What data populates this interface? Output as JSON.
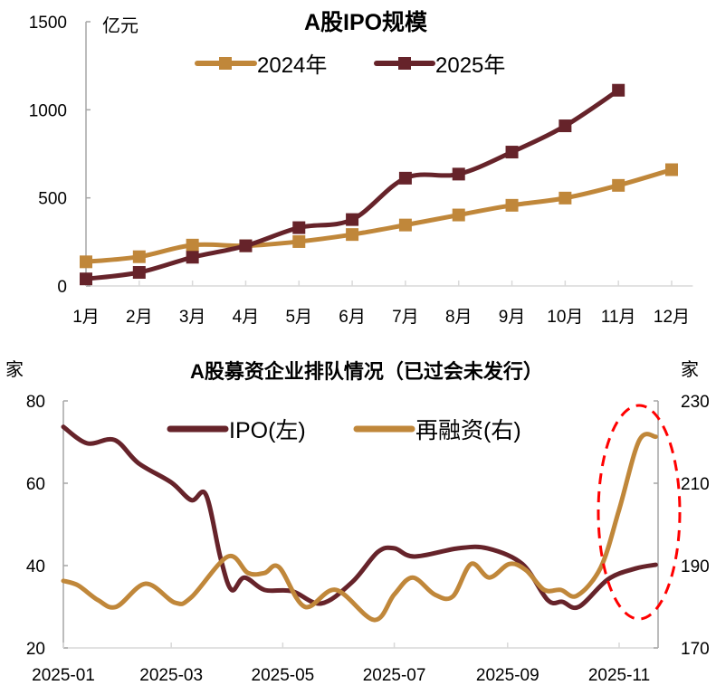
{
  "colors": {
    "y2024": "#C0873A",
    "y2025": "#66232A",
    "annotation": "#FF0000",
    "axis": "#A6A6A6"
  },
  "chart_data": [
    {
      "type": "line",
      "title": "A股IPO规模",
      "ylabel": "亿元",
      "categories": [
        "1月",
        "2月",
        "3月",
        "4月",
        "5月",
        "6月",
        "7月",
        "8月",
        "9月",
        "10月",
        "11月",
        "12月"
      ],
      "ylim": [
        0,
        1500
      ],
      "yticks": [
        "0",
        "500",
        "1000",
        "1500"
      ],
      "grid": false,
      "legend_position": "top",
      "markers": "square",
      "series": [
        {
          "name": "2024年",
          "values": [
            137,
            166,
            232,
            228,
            252,
            292,
            346,
            403,
            458,
            499,
            571,
            660
          ]
        },
        {
          "name": "2025年",
          "values": [
            40,
            77,
            163,
            228,
            331,
            377,
            612,
            635,
            760,
            909,
            1111,
            null
          ]
        }
      ]
    },
    {
      "type": "line",
      "title": "A股募资企业排队情况（已过会未发行）",
      "ylabel_left": "家",
      "ylabel_right": "家",
      "ylim_left": [
        20,
        80
      ],
      "ylim_right": [
        170,
        230
      ],
      "yticks_left": [
        "20",
        "40",
        "60",
        "80"
      ],
      "yticks_right": [
        "170",
        "190",
        "210",
        "230"
      ],
      "xticks": [
        "2025-01",
        "2025-03",
        "2025-05",
        "2025-07",
        "2025-09",
        "2025-11"
      ],
      "grid": false,
      "legend_position": "top",
      "annotation": "red dashed ellipse highlighting 2025-10 to 2025-11",
      "series": [
        {
          "name": "IPO(左)",
          "axis": "left",
          "points": [
            [
              "2025-01-01",
              73.7
            ],
            [
              "2025-01-14",
              69.7
            ],
            [
              "2025-01-29",
              70.5
            ],
            [
              "2025-02-11",
              64.9
            ],
            [
              "2025-03-01",
              60.2
            ],
            [
              "2025-03-12",
              55.9
            ],
            [
              "2025-03-20",
              57.2
            ],
            [
              "2025-03-28",
              41.8
            ],
            [
              "2025-04-03",
              34.1
            ],
            [
              "2025-04-10",
              37.1
            ],
            [
              "2025-04-21",
              34.1
            ],
            [
              "2025-05-06",
              33.8
            ],
            [
              "2025-05-22",
              30.8
            ],
            [
              "2025-06-08",
              36.0
            ],
            [
              "2025-06-22",
              43.3
            ],
            [
              "2025-07-01",
              44.2
            ],
            [
              "2025-07-12",
              42.2
            ],
            [
              "2025-08-05",
              44.2
            ],
            [
              "2025-08-21",
              44.2
            ],
            [
              "2025-09-09",
              40.4
            ],
            [
              "2025-09-23",
              31.6
            ],
            [
              "2025-10-01",
              31.2
            ],
            [
              "2025-10-10",
              30.0
            ],
            [
              "2025-10-26",
              36.7
            ],
            [
              "2025-11-10",
              39.3
            ],
            [
              "2025-11-21",
              40.2
            ]
          ]
        },
        {
          "name": "再融资(右)",
          "axis": "right",
          "points": [
            [
              "2025-01-01",
              186.3
            ],
            [
              "2025-01-09",
              185.2
            ],
            [
              "2025-01-20",
              181.6
            ],
            [
              "2025-01-30",
              180.0
            ],
            [
              "2025-02-15",
              185.6
            ],
            [
              "2025-03-03",
              181.0
            ],
            [
              "2025-03-12",
              182.3
            ],
            [
              "2025-04-01",
              192.2
            ],
            [
              "2025-04-12",
              188.2
            ],
            [
              "2025-04-21",
              188.2
            ],
            [
              "2025-04-29",
              189.6
            ],
            [
              "2025-05-13",
              180.0
            ],
            [
              "2025-05-30",
              184.1
            ],
            [
              "2025-06-20",
              176.8
            ],
            [
              "2025-07-01",
              183.0
            ],
            [
              "2025-07-11",
              187.1
            ],
            [
              "2025-07-23",
              183.0
            ],
            [
              "2025-08-02",
              182.5
            ],
            [
              "2025-08-12",
              190.4
            ],
            [
              "2025-08-22",
              187.1
            ],
            [
              "2025-09-02",
              190.4
            ],
            [
              "2025-09-11",
              188.9
            ],
            [
              "2025-09-21",
              184.1
            ],
            [
              "2025-09-30",
              184.1
            ],
            [
              "2025-10-09",
              182.7
            ],
            [
              "2025-10-22",
              189.6
            ],
            [
              "2025-11-01",
              203.6
            ],
            [
              "2025-11-12",
              220.4
            ],
            [
              "2025-11-21",
              221.3
            ]
          ]
        }
      ]
    }
  ]
}
